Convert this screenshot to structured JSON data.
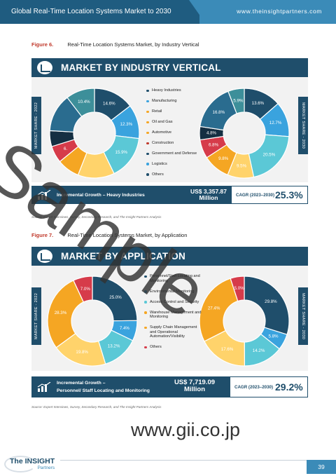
{
  "header": {
    "report_title": "Global Real-Time Location Systems Market to 2030",
    "website": "www.theinsightpartners.com"
  },
  "figure6": {
    "caption_num": "Figure 6.",
    "caption_text": "Real-Time Location Systems Market, by Industry Vertical",
    "banner": "MARKET BY INDUSTRY VERTICAL",
    "left_tag": "MARKET SHARE - 2022",
    "right_tag": "MARKET SHARE - 2030",
    "growth_label": "Incremental Growth – Heavy Industries",
    "growth_value": "US$ 3,357.87",
    "growth_unit": "Million",
    "cagr_label": "CAGR (2023–2030)",
    "cagr_value": "25.3%",
    "source": "Source: Expert Interviews, Survey, Secondary Research, and The Insight Partners Analysis"
  },
  "figure7": {
    "caption_num": "Figure 7.",
    "caption_text": "Real-Time Location Systems Market, by Application",
    "banner": "MARKET BY APPLICATION",
    "left_tag": "MARKET SHARE - 2022",
    "right_tag": "MARKET SHARE - 2030",
    "growth_label_1": "Incremental Growth –",
    "growth_label_2": "Personnel/ Staff Locating and Monitoring",
    "growth_value": "US$ 7,719.09",
    "growth_unit": "Million",
    "cagr_label": "CAGR (2023–2030)",
    "cagr_value": "29.2%",
    "source": "Source: Expert Interviews, Survey, Secondary Research, and The Insight Partners Analysis"
  },
  "chart_data": [
    {
      "type": "pie",
      "chart": "industry-2022",
      "categories": [
        "Heavy Industries",
        "Manufacturing",
        "Retail",
        "Oil and Gas",
        "Automotive",
        "Construction",
        "Government and Defense",
        "Logistics",
        "Others"
      ],
      "values": [
        14.6,
        12.3,
        15.9,
        13.2,
        8.1,
        6.1,
        5.7,
        13.7,
        10.4
      ],
      "visible_labels": [
        "14.6%",
        "12.3%",
        "15.9%",
        "",
        "",
        "6.",
        "",
        "",
        "10.4%"
      ]
    },
    {
      "type": "pie",
      "chart": "industry-2030",
      "categories": [
        "Heavy Industries",
        "Manufacturing",
        "Retail",
        "Oil and Gas",
        "Automotive",
        "Construction",
        "Government and Defense",
        "Logistics",
        "Others"
      ],
      "values": [
        13.6,
        12.7,
        20.5,
        9.5,
        9.8,
        6.8,
        4.8,
        16.8,
        5.9
      ],
      "visible_labels": [
        "13.6%",
        "12.7%",
        "20.5%",
        "9.5%",
        "9.8%",
        "6.8%",
        "4.8%",
        "16.8%",
        "5.9%"
      ]
    },
    {
      "type": "pie",
      "chart": "application-2022",
      "categories": [
        "Personnel/Staff Locating and Monitoring",
        "Environmental Monitoring",
        "Access Control and Security",
        "Warehouse Management and Monitoring",
        "Supply Chain Management and Operational Automation/Visibility",
        "Others"
      ],
      "values": [
        25.0,
        7.4,
        13.2,
        19.8,
        28.3,
        7.0
      ],
      "visible_labels": [
        "25.0%",
        "7.4%",
        "13.2%",
        "19.8%",
        "28.3%",
        "7.0%"
      ]
    },
    {
      "type": "pie",
      "chart": "application-2030",
      "categories": [
        "Personnel/Staff Locating and Monitoring",
        "Environmental Monitoring",
        "Access Control and Security",
        "Warehouse Management and Monitoring",
        "Supply Chain Management and Operational Automation/Visibility",
        "Others"
      ],
      "values": [
        29.8,
        5.8,
        14.2,
        17.6,
        27.4,
        5.0
      ],
      "visible_labels": [
        "29.8%",
        "5.8%",
        "14.2%",
        "17.6%",
        "27.4%",
        "5.0%"
      ]
    }
  ],
  "legend6": [
    {
      "label": "Heavy Industries",
      "color": "#1f4e6b"
    },
    {
      "label": "Manufacturing",
      "color": "#3aa3de"
    },
    {
      "label": "Retail",
      "color": "#f5a623"
    },
    {
      "label": "Oil and Gas",
      "color": "#f5a623"
    },
    {
      "label": "Automotive",
      "color": "#f5a623"
    },
    {
      "label": "Construction",
      "color": "#c0392b"
    },
    {
      "label": "Government and Defense",
      "color": "#1f4e6b"
    },
    {
      "label": "Logistics",
      "color": "#3aa3de"
    },
    {
      "label": "Others",
      "color": "#1f4e6b"
    }
  ],
  "legend7": [
    {
      "label": "Personnel/Staff Locating and Monitoring",
      "color": "#1f4e6b"
    },
    {
      "label": "Environmental Monitoring",
      "color": "#3aa3de"
    },
    {
      "label": "Access Control and Security",
      "color": "#5bc8d6"
    },
    {
      "label": "Warehouse Management and Monitoring",
      "color": "#f5a623"
    },
    {
      "label": "Supply Chain Management and Operational Automation/Visibility",
      "color": "#f5a623"
    },
    {
      "label": "Others",
      "color": "#d63b4a"
    }
  ],
  "colors": {
    "industry": [
      "#1f4e6b",
      "#3aa3de",
      "#5bc8d6",
      "#ffd36b",
      "#f5a623",
      "#d63b4a",
      "#152f42",
      "#2a6c8f",
      "#3d8f9a"
    ],
    "application": [
      "#1f4e6b",
      "#3aa3de",
      "#5bc8d6",
      "#ffd36b",
      "#f5a623",
      "#d63b4a"
    ]
  },
  "watermark": "Sample",
  "site_watermark": "www.gii.co.jp",
  "footer": {
    "logo_main": "The INSIGHT",
    "logo_sub": "Partners",
    "page_number": "39"
  }
}
